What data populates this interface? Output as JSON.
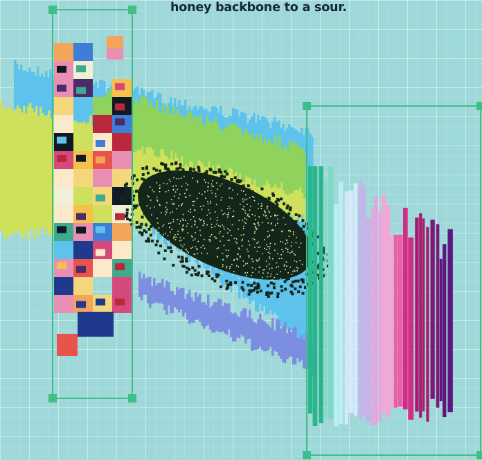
{
  "caption": "honey backbone to a sour.",
  "colors": {
    "background": "#9fd8d9",
    "grid_line": "#ffffff",
    "frame_stroke": "#3fbf87",
    "frame_handle": "#3fbf87",
    "caption_text": "#14263a",
    "dense_core": "#13261a",
    "speckle": "#e9f3a8",
    "band_blue": "#5ec3ec",
    "band_yellow_green": "#cfe05c",
    "band_green": "#8fd35d",
    "band_periwinkle": "#7c8ee0"
  },
  "mosaic_palette": [
    "#f3d77a",
    "#f4a55a",
    "#e8534b",
    "#b9283b",
    "#4a2a6b",
    "#1f3a8c",
    "#3f7ed6",
    "#3faa8e",
    "#8fd35d",
    "#f0f0d8",
    "#111a24",
    "#e98fb4",
    "#f6c14a",
    "#5ec3ec",
    "#d54a7b",
    "#fbe9c9"
  ],
  "histogram_palette": [
    "#2ab58b",
    "#7fd9c5",
    "#b9eef3",
    "#d7e9fb",
    "#c6b3ea",
    "#e1a8e0",
    "#f4a7d6",
    "#ea5fa8",
    "#d22d86",
    "#a81a6f",
    "#7d1a79",
    "#5d1880"
  ]
}
